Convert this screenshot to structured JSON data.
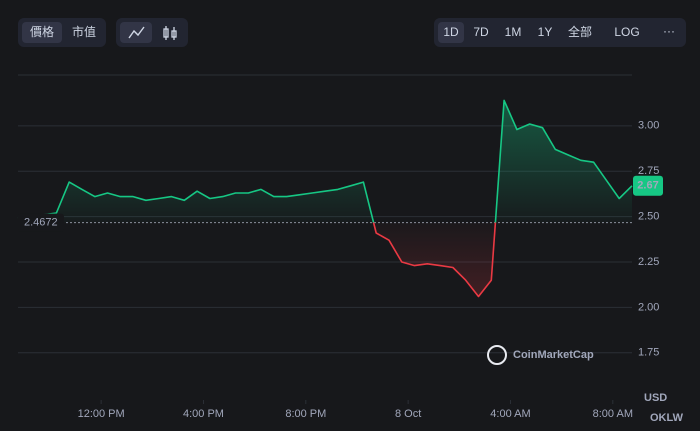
{
  "toolbar": {
    "view_buttons": [
      "價格",
      "市值"
    ],
    "range_buttons": [
      "1D",
      "7D",
      "1M",
      "1Y",
      "全部",
      "LOG"
    ],
    "more": "···"
  },
  "chart_data": {
    "type": "line",
    "x": [
      0,
      0.5,
      1,
      1.5,
      2,
      2.5,
      3,
      3.5,
      4,
      4.5,
      5,
      5.5,
      6,
      6.5,
      7,
      7.5,
      8,
      8.5,
      9,
      9.5,
      10,
      10.5,
      11,
      11.5,
      12,
      12.5,
      13,
      13.5,
      14,
      14.5,
      15,
      15.5,
      16,
      16.5,
      17,
      17.5,
      18,
      18.5,
      19,
      19.5,
      20,
      20.5,
      21,
      21.5,
      22,
      22.5,
      23,
      23.5,
      24
    ],
    "series": [
      {
        "name": "USD",
        "color": "#16c784",
        "negative_color": "#ea3943",
        "values": [
          2.49,
          2.5,
          2.51,
          2.52,
          2.69,
          2.65,
          2.61,
          2.63,
          2.61,
          2.61,
          2.59,
          2.6,
          2.61,
          2.59,
          2.64,
          2.6,
          2.61,
          2.63,
          2.63,
          2.65,
          2.61,
          2.61,
          2.62,
          2.63,
          2.64,
          2.65,
          2.67,
          2.69,
          2.41,
          2.37,
          2.25,
          2.23,
          2.24,
          2.23,
          2.22,
          2.15,
          2.06,
          2.15,
          3.14,
          2.98,
          3.01,
          2.99,
          2.87,
          2.84,
          2.81,
          2.8,
          2.7,
          2.6,
          2.67
        ]
      }
    ],
    "xlim": [
      0,
      24
    ],
    "xticks": [
      {
        "value": 3.25,
        "label": "12:00 PM"
      },
      {
        "value": 7.25,
        "label": "4:00 PM"
      },
      {
        "value": 11.25,
        "label": "8:00 PM"
      },
      {
        "value": 15.25,
        "label": "8 Oct"
      },
      {
        "value": 19.25,
        "label": "4:00 AM"
      },
      {
        "value": 23.25,
        "label": "8:00 AM"
      }
    ],
    "ylim": [
      1.49,
      3.28
    ],
    "yticks": [
      {
        "value": 1.75,
        "label": "1.75"
      },
      {
        "value": 2,
        "label": "2.00"
      },
      {
        "value": 2.25,
        "label": "2.25"
      },
      {
        "value": 2.5,
        "label": "2.50"
      },
      {
        "value": 2.75,
        "label": "2.75"
      },
      {
        "value": 3,
        "label": "3.00"
      }
    ],
    "grid": true,
    "baseline": 2.4672,
    "last_price": 2.67,
    "currency": "USD",
    "watermark": "CoinMarketCap",
    "site_mark": "OKLW"
  }
}
